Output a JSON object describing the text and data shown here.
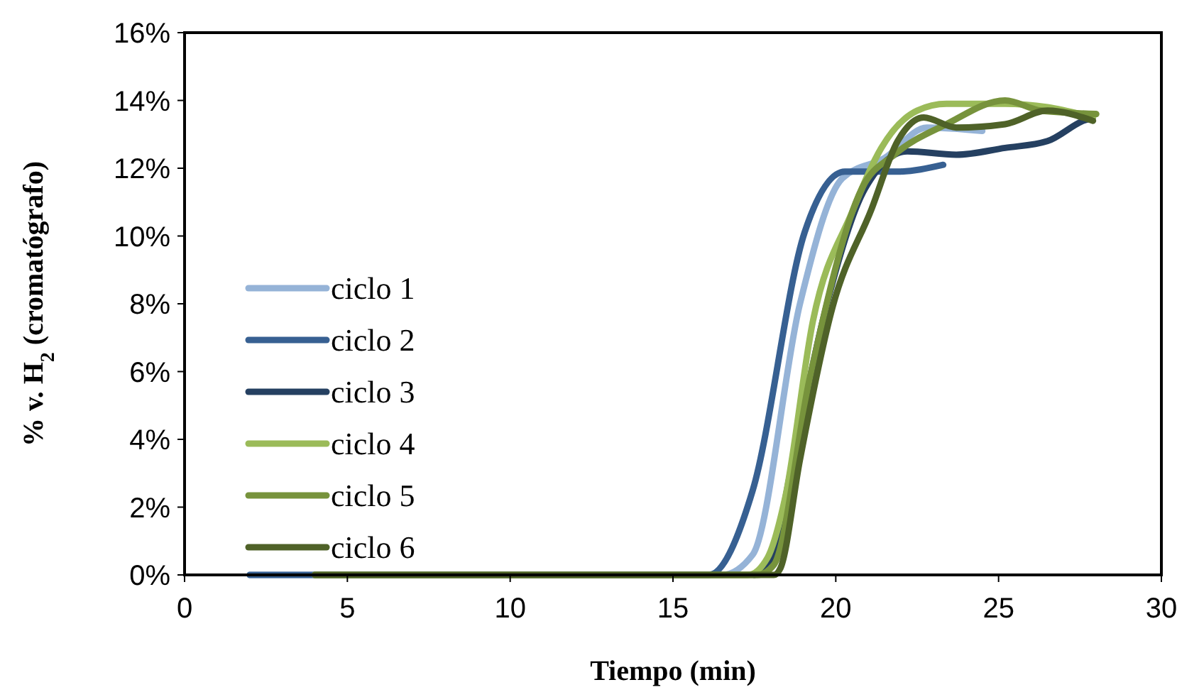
{
  "chart_data": {
    "type": "line",
    "xlabel": "Tiempo (min)",
    "ylabel": "% v. H$_{2}$ (cromatógrafo)",
    "xlim": [
      0,
      30
    ],
    "xticks": [
      0,
      5,
      10,
      15,
      20,
      25,
      30
    ],
    "ylim": [
      0,
      16
    ],
    "yticks": [
      {
        "value": 0,
        "label": "0%"
      },
      {
        "value": 2,
        "label": "2%"
      },
      {
        "value": 4,
        "label": "4%"
      },
      {
        "value": 6,
        "label": "6%"
      },
      {
        "value": 8,
        "label": "8%"
      },
      {
        "value": 10,
        "label": "10%"
      },
      {
        "value": 12,
        "label": "12%"
      },
      {
        "value": 14,
        "label": "14%"
      },
      {
        "value": 16,
        "label": "16%"
      }
    ],
    "grid": false,
    "legend": "bottom left",
    "marker": "none",
    "line_style": "solid",
    "series": [
      {
        "name": "ciclo 1",
        "color": "#95b3d7",
        "x": [
          2,
          16.5,
          17.45,
          18.9,
          20.2,
          21.5,
          22.8,
          24.5
        ],
        "values": [
          0,
          0,
          0.6,
          8.0,
          11.7,
          12.3,
          13.2,
          13.1
        ]
      },
      {
        "name": "ciclo 2",
        "color": "#376092",
        "x": [
          2,
          16.1,
          17.45,
          19.04,
          20.28,
          21.9,
          23.3
        ],
        "values": [
          0,
          0,
          2.5,
          10.1,
          11.9,
          11.9,
          12.1
        ]
      },
      {
        "name": "ciclo 3",
        "color": "#254061",
        "x": [
          17.5,
          17.95,
          18.75,
          19.6,
          20.9,
          22.2,
          23.7,
          25.2,
          26.5,
          27.6,
          27.9
        ],
        "values": [
          0,
          0.35,
          3.7,
          7.5,
          11.4,
          12.5,
          12.4,
          12.6,
          12.8,
          13.4,
          13.5
        ]
      },
      {
        "name": "ciclo 4",
        "color": "#9bbb59",
        "x": [
          4,
          17.3,
          17.9,
          18.45,
          19.3,
          20.5,
          21.4,
          22.5,
          23.4,
          25.2,
          26.5,
          27.9
        ],
        "values": [
          0,
          0,
          0.5,
          2.3,
          7.5,
          10.7,
          12.6,
          13.7,
          13.9,
          13.9,
          13.8,
          13.5
        ]
      },
      {
        "name": "ciclo 5",
        "color": "#77933c",
        "x": [
          4,
          17.6,
          18.1,
          19.2,
          20.8,
          21.8,
          23.4,
          25.2,
          26.3,
          28
        ],
        "values": [
          0,
          0,
          0.3,
          5.8,
          11.4,
          12.4,
          13.3,
          14.0,
          13.7,
          13.6
        ]
      },
      {
        "name": "ciclo 6",
        "color": "#4f6228",
        "x": [
          4,
          18.1,
          18.3,
          18.9,
          19.9,
          21.1,
          21.9,
          22.7,
          23.7,
          25.2,
          26.5,
          27.9
        ],
        "values": [
          0,
          0,
          0.2,
          3.4,
          7.9,
          10.8,
          12.8,
          13.5,
          13.2,
          13.3,
          13.7,
          13.4
        ]
      }
    ]
  }
}
